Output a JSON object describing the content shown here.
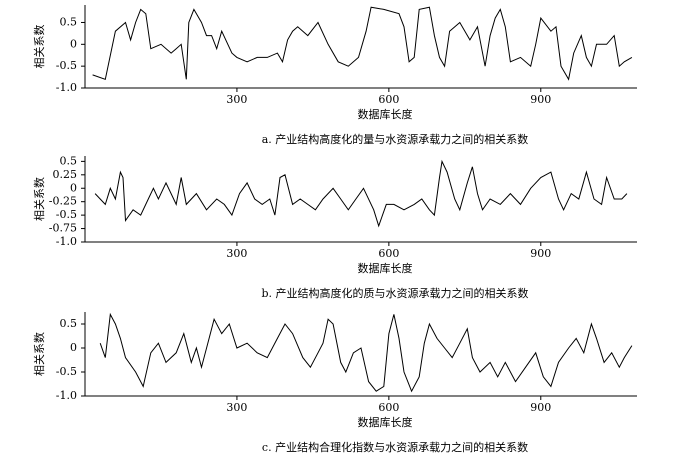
{
  "chart_data": [
    {
      "type": "line",
      "caption": "a.  产业结构高度化的量与水资源承载力之间的相关系数",
      "xlabel": "数据库长度",
      "ylabel": "相关系数",
      "color": "#000000",
      "xlim": [
        0,
        1090
      ],
      "xticks": [
        300,
        600,
        900
      ],
      "ylim": [
        -1,
        0.9
      ],
      "yticks": [
        {
          "value": -1,
          "label": "-1.0"
        },
        -0.5,
        0,
        0.5
      ],
      "x": [
        15,
        40,
        60,
        80,
        90,
        100,
        110,
        120,
        130,
        150,
        170,
        180,
        190,
        200,
        205,
        215,
        230,
        240,
        250,
        260,
        270,
        290,
        300,
        320,
        340,
        360,
        380,
        390,
        400,
        410,
        420,
        440,
        460,
        480,
        500,
        520,
        540,
        555,
        565,
        590,
        620,
        630,
        640,
        650,
        660,
        680,
        690,
        700,
        710,
        720,
        740,
        760,
        775,
        790,
        800,
        810,
        820,
        830,
        840,
        860,
        880,
        890,
        900,
        920,
        930,
        940,
        955,
        965,
        980,
        990,
        1000,
        1010,
        1030,
        1045,
        1055,
        1065,
        1080
      ],
      "values": [
        -0.7,
        -0.8,
        0.3,
        0.5,
        0.1,
        0.5,
        0.8,
        0.7,
        -0.1,
        0,
        -0.2,
        -0.1,
        0,
        -0.8,
        0.5,
        0.8,
        0.5,
        0.2,
        0.2,
        -0.1,
        0.3,
        -0.2,
        -0.3,
        -0.4,
        -0.3,
        -0.3,
        -0.2,
        -0.4,
        0.1,
        0.3,
        0.4,
        0.2,
        0.5,
        0,
        -0.4,
        -0.5,
        -0.3,
        0.3,
        0.85,
        0.8,
        0.7,
        0.4,
        -0.4,
        -0.3,
        0.8,
        0.85,
        0.2,
        -0.3,
        -0.5,
        0.3,
        0.5,
        0.1,
        0.4,
        -0.5,
        0.2,
        0.6,
        0.8,
        0.4,
        -0.4,
        -0.3,
        -0.5,
        0,
        0.6,
        0.3,
        0.4,
        -0.5,
        -0.8,
        -0.2,
        0.2,
        -0.3,
        -0.5,
        0,
        0,
        0.2,
        -0.5,
        -0.4,
        -0.3
      ]
    },
    {
      "type": "line",
      "caption": "b.  产业结构高度化的质与水资源承载力之间的相关系数",
      "xlabel": "数据库长度",
      "ylabel": "相关系数",
      "color": "#000000",
      "xlim": [
        0,
        1090
      ],
      "xticks": [
        300,
        600,
        900
      ],
      "ylim": [
        -1,
        0.6
      ],
      "yticks": [
        {
          "value": -1,
          "label": "-1.0"
        },
        -0.75,
        -0.5,
        -0.25,
        0,
        0.25,
        0.5
      ],
      "x": [
        20,
        40,
        50,
        60,
        70,
        75,
        80,
        95,
        110,
        125,
        135,
        145,
        160,
        170,
        180,
        190,
        200,
        220,
        240,
        260,
        275,
        290,
        305,
        320,
        335,
        350,
        365,
        375,
        385,
        395,
        410,
        425,
        440,
        455,
        470,
        490,
        505,
        520,
        535,
        550,
        570,
        580,
        595,
        610,
        630,
        650,
        665,
        680,
        690,
        700,
        705,
        715,
        730,
        740,
        755,
        765,
        775,
        785,
        800,
        820,
        840,
        860,
        880,
        900,
        920,
        935,
        945,
        960,
        975,
        990,
        1005,
        1020,
        1030,
        1045,
        1060,
        1070
      ],
      "values": [
        -0.1,
        -0.3,
        0,
        -0.2,
        0.3,
        0.2,
        -0.6,
        -0.4,
        -0.5,
        -0.2,
        0,
        -0.2,
        0.1,
        -0.1,
        -0.3,
        0.2,
        -0.3,
        -0.1,
        -0.4,
        -0.2,
        -0.3,
        -0.5,
        -0.1,
        0.1,
        -0.2,
        -0.3,
        -0.2,
        -0.5,
        0.2,
        0.25,
        -0.3,
        -0.2,
        -0.3,
        -0.4,
        -0.2,
        0,
        -0.2,
        -0.4,
        -0.2,
        0,
        -0.4,
        -0.7,
        -0.3,
        -0.3,
        -0.4,
        -0.3,
        -0.2,
        -0.4,
        -0.5,
        0.2,
        0.5,
        0.3,
        -0.2,
        -0.4,
        0.1,
        0.4,
        -0.1,
        -0.4,
        -0.2,
        -0.3,
        -0.1,
        -0.3,
        0,
        0.2,
        0.3,
        -0.2,
        -0.4,
        -0.1,
        -0.2,
        0.3,
        -0.2,
        -0.3,
        0.2,
        -0.2,
        -0.2,
        -0.1
      ]
    },
    {
      "type": "line",
      "caption": "c.  产业结构合理化指数与水资源承载力之间的相关系数",
      "xlabel": "数据库长度",
      "ylabel": "相关系数",
      "color": "#000000",
      "xlim": [
        0,
        1090
      ],
      "xticks": [
        300,
        600,
        900
      ],
      "ylim": [
        -1,
        0.75
      ],
      "yticks": [
        {
          "value": -1,
          "label": "-1.0"
        },
        -0.5,
        0,
        0.5
      ],
      "x": [
        30,
        40,
        50,
        60,
        70,
        80,
        100,
        115,
        130,
        145,
        160,
        180,
        195,
        210,
        220,
        230,
        245,
        255,
        270,
        285,
        300,
        320,
        340,
        360,
        380,
        395,
        410,
        430,
        445,
        460,
        470,
        480,
        490,
        505,
        515,
        530,
        545,
        560,
        575,
        590,
        600,
        610,
        620,
        630,
        645,
        660,
        670,
        680,
        695,
        710,
        725,
        740,
        755,
        765,
        780,
        800,
        815,
        830,
        850,
        870,
        890,
        905,
        920,
        935,
        955,
        970,
        985,
        1000,
        1010,
        1025,
        1040,
        1055,
        1065,
        1080
      ],
      "values": [
        0.1,
        -0.2,
        0.7,
        0.5,
        0.2,
        -0.2,
        -0.5,
        -0.8,
        -0.1,
        0.1,
        -0.3,
        -0.1,
        0.3,
        -0.3,
        0,
        -0.4,
        0.2,
        0.6,
        0.3,
        0.5,
        0,
        0.1,
        -0.1,
        -0.2,
        0.2,
        0.5,
        0.3,
        -0.2,
        -0.4,
        -0.1,
        0.1,
        0.6,
        0.5,
        -0.3,
        -0.5,
        -0.1,
        0,
        -0.7,
        -0.9,
        -0.8,
        0.3,
        0.7,
        0.2,
        -0.5,
        -0.9,
        -0.6,
        0.1,
        0.5,
        0.2,
        0,
        -0.2,
        0.1,
        0.4,
        -0.2,
        -0.5,
        -0.3,
        -0.6,
        -0.3,
        -0.7,
        -0.4,
        -0.1,
        -0.6,
        -0.8,
        -0.3,
        0,
        0.2,
        -0.1,
        0.5,
        0.2,
        -0.3,
        -0.1,
        -0.4,
        -0.2,
        0.05
      ]
    }
  ]
}
